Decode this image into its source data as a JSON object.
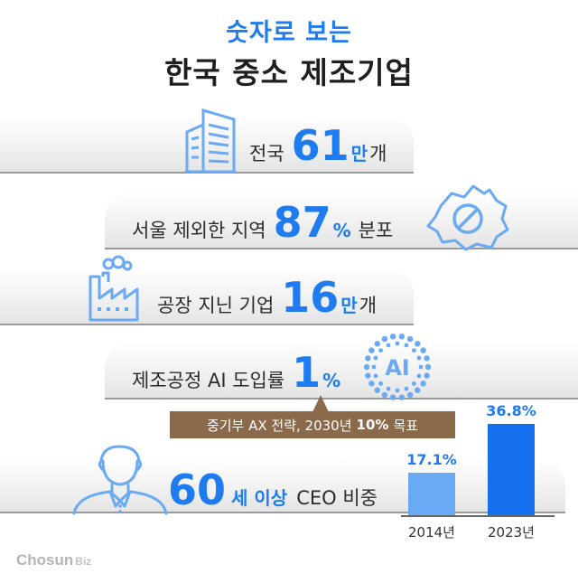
{
  "title": {
    "line1": "숫자로 보는",
    "line2": "한국 중소 제조기업"
  },
  "stats": {
    "companies": {
      "prefix": "전국",
      "number": "61",
      "unit": "만",
      "suffix": "개"
    },
    "outside_seoul": {
      "prefix": "서울 제외한 지역",
      "number": "87",
      "unit": "%",
      "suffix": "분포"
    },
    "factories": {
      "prefix": "공장 지닌 기업",
      "number": "16",
      "unit": "만",
      "suffix": "개"
    },
    "ai_adoption": {
      "prefix": "제조공정 AI 도입률",
      "number": "1",
      "unit": "%"
    },
    "ceo_age": {
      "number": "60",
      "unit": "세 이상",
      "suffix": "CEO 비중"
    }
  },
  "ai_note": {
    "pre": "중기부 AX 전략, 2030년",
    "highlight": "10%",
    "post": "목표"
  },
  "ai_icon_text": "AI",
  "chart_data": {
    "type": "bar",
    "categories": [
      "2014년",
      "2023년"
    ],
    "values": [
      17.1,
      36.8
    ],
    "value_labels": [
      "17.1%",
      "36.8%"
    ],
    "ylim": [
      0,
      40
    ]
  },
  "colors": {
    "accent": "#1e7cf0",
    "bar_2014": "#6aaaf5",
    "bar_2023": "#1670ee",
    "note_bg": "#8b6a4c"
  },
  "icons": [
    "building-icon",
    "no-sign-map-icon",
    "factory-icon",
    "ai-dots-icon",
    "person-icon"
  ],
  "logo": {
    "brand": "Chosun",
    "sub": "Biz"
  }
}
